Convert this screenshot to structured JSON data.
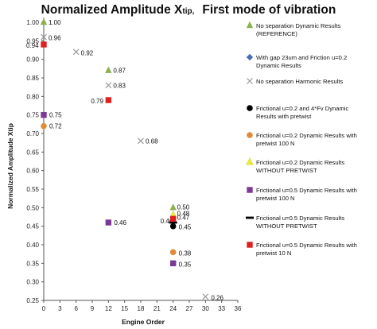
{
  "chart_data": {
    "type": "scatter",
    "title": "Normalized Amplitude X",
    "title_sub": "tip,",
    "title_rest": "First mode of vibration",
    "xlabel": "Engine Order",
    "ylabel": "Normalized Amplitude  Xtip",
    "xlim": [
      0,
      36
    ],
    "ylim": [
      0.25,
      1.0
    ],
    "xticks": [
      0,
      3,
      6,
      9,
      12,
      15,
      18,
      21,
      24,
      27,
      30,
      33,
      36
    ],
    "yticks": [
      "1.00",
      "0.95",
      "0.90",
      "0.85",
      "0.80",
      "0.75",
      "0.70",
      "0.65",
      "0.60",
      "0.55",
      "0.50",
      "0.45",
      "0.40",
      "0.35",
      "0.30",
      "0.25"
    ],
    "grid": false,
    "legend_position": "right",
    "series": [
      {
        "name": [
          "No separation Dynamic Results",
          "(REFERENCE)"
        ],
        "marker": "triangle",
        "color": "#8db050",
        "points": [
          {
            "x": 0,
            "y": 1.0,
            "label": "1.00"
          },
          {
            "x": 12,
            "y": 0.87,
            "label": "0.87"
          },
          {
            "x": 24,
            "y": 0.5,
            "label": "0.50"
          }
        ]
      },
      {
        "name": [
          "With gap 23um and Friction u=0.2",
          "Dynamic Results"
        ],
        "marker": "diamond",
        "color": "#4a6fb5",
        "points": []
      },
      {
        "name": [
          "No separation Harmonic Results"
        ],
        "marker": "x",
        "color": "#9a9a9a",
        "points": [
          {
            "x": 0,
            "y": 0.96,
            "label": "0.96"
          },
          {
            "x": 6,
            "y": 0.92,
            "label": "0.92"
          },
          {
            "x": 12,
            "y": 0.83,
            "label": "0.83"
          },
          {
            "x": 18,
            "y": 0.68,
            "label": "0.68"
          },
          {
            "x": 30,
            "y": 0.26,
            "label": "0.26"
          }
        ]
      },
      {
        "name": [
          "Frictional u=0.2 and 4*Fv Dynamic",
          "Results with pretwist"
        ],
        "marker": "circle",
        "color": "#000000",
        "points": [
          {
            "x": 24,
            "y": 0.45,
            "label": "0.45"
          }
        ]
      },
      {
        "name": [
          "Frictional u=0.2 Dynamic Results with",
          "pretwist 100 N"
        ],
        "marker": "circle",
        "color": "#e08a3a",
        "points": [
          {
            "x": 0,
            "y": 0.72,
            "label": "0.72"
          },
          {
            "x": 24,
            "y": 0.38,
            "label": "0.38"
          }
        ]
      },
      {
        "name": [
          "Frictional u=0.2 Dynamic Results",
          "WITHOUT PRETWIST"
        ],
        "marker": "triangle",
        "color": "#ecec3a",
        "points": [
          {
            "x": 24,
            "y": 0.48,
            "label": "0.48"
          }
        ]
      },
      {
        "name": [
          "Frictional u=0.5 Dynamic Results with",
          "pretwist 100 N"
        ],
        "marker": "square",
        "color": "#7b3a96",
        "points": [
          {
            "x": 0,
            "y": 0.75,
            "label": "0.75"
          },
          {
            "x": 12,
            "y": 0.46,
            "label": "0.46"
          },
          {
            "x": 24,
            "y": 0.35,
            "label": "0.35"
          }
        ]
      },
      {
        "name": [
          "Frictional u=0.5 Dynamic Results",
          "WITHOUT PRETWIST"
        ],
        "marker": "dash",
        "color": "#000000",
        "points": [
          {
            "x": 24,
            "y": 0.46,
            "label": "0.46"
          }
        ]
      },
      {
        "name": [
          "Frictional u=0.5 Dynamic Results with",
          "pretwist 10 N"
        ],
        "marker": "square",
        "color": "#e02020",
        "points": [
          {
            "x": 0,
            "y": 0.94,
            "label": "0.94"
          },
          {
            "x": 12,
            "y": 0.79,
            "label": "0.79"
          },
          {
            "x": 24,
            "y": 0.47,
            "label": "0.47"
          }
        ]
      }
    ]
  }
}
